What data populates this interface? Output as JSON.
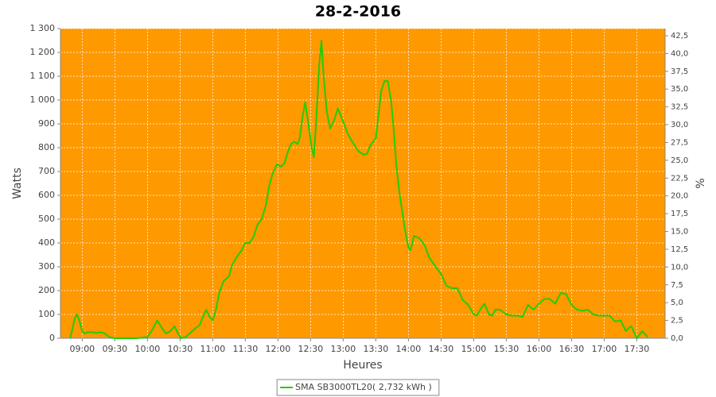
{
  "chart_data": {
    "type": "line",
    "title": "28-2-2016",
    "xlabel": "Heures",
    "ylabel": "Watts",
    "y2label": "%",
    "x": [
      "08:49",
      "08:53",
      "08:55",
      "08:57",
      "09:00",
      "09:02",
      "09:05",
      "09:10",
      "09:13",
      "09:16",
      "09:20",
      "09:25",
      "09:30",
      "09:40",
      "09:50",
      "10:00",
      "10:05",
      "10:09",
      "10:13",
      "10:17",
      "10:21",
      "10:25",
      "10:28",
      "10:31",
      "10:35",
      "10:40",
      "10:45",
      "10:48",
      "10:51",
      "10:54",
      "10:57",
      "11:00",
      "11:03",
      "11:06",
      "11:10",
      "11:15",
      "11:18",
      "11:22",
      "11:26",
      "11:30",
      "11:34",
      "11:38",
      "11:41",
      "11:45",
      "11:49",
      "11:52",
      "11:55",
      "11:59",
      "12:03",
      "12:06",
      "12:09",
      "12:12",
      "12:15",
      "12:18",
      "12:20",
      "12:23",
      "12:25",
      "12:28",
      "12:31",
      "12:33",
      "12:35",
      "12:38",
      "12:40",
      "12:42",
      "12:45",
      "12:48",
      "12:52",
      "12:55",
      "13:00",
      "13:04",
      "13:09",
      "13:14",
      "13:19",
      "13:22",
      "13:25",
      "13:30",
      "13:33",
      "13:35",
      "13:38",
      "13:41",
      "13:44",
      "13:46",
      "13:49",
      "13:52",
      "13:57",
      "14:00",
      "14:02",
      "14:05",
      "14:10",
      "14:15",
      "14:19",
      "14:25",
      "14:30",
      "14:35",
      "14:40",
      "14:45",
      "14:50",
      "14:55",
      "15:00",
      "15:03",
      "15:06",
      "15:10",
      "15:14",
      "15:17",
      "15:20",
      "15:24",
      "15:30",
      "15:35",
      "15:40",
      "15:45",
      "15:50",
      "15:55",
      "16:00",
      "16:05",
      "16:10",
      "16:15",
      "16:20",
      "16:25",
      "16:30",
      "16:35",
      "16:40",
      "16:45",
      "16:50",
      "16:55",
      "17:00",
      "17:05",
      "17:10",
      "17:15",
      "17:20",
      "17:23",
      "17:25",
      "17:30",
      "17:35",
      "17:40"
    ],
    "series": [
      {
        "name": "SMA SB3000TL20( 2,732 kWh )",
        "color": "#22cc00",
        "values": [
          0,
          80,
          100,
          80,
          30,
          20,
          25,
          25,
          22,
          25,
          22,
          5,
          0,
          0,
          0,
          5,
          40,
          75,
          45,
          20,
          30,
          50,
          20,
          0,
          5,
          25,
          45,
          55,
          90,
          120,
          90,
          75,
          120,
          190,
          240,
          260,
          310,
          340,
          365,
          400,
          400,
          430,
          475,
          500,
          560,
          640,
          690,
          730,
          720,
          735,
          780,
          815,
          825,
          815,
          840,
          940,
          990,
          900,
          800,
          760,
          900,
          1150,
          1250,
          1100,
          950,
          880,
          920,
          965,
          910,
          860,
          820,
          785,
          770,
          775,
          810,
          840,
          960,
          1040,
          1080,
          1080,
          1000,
          900,
          720,
          600,
          450,
          380,
          370,
          430,
          420,
          390,
          340,
          300,
          270,
          220,
          210,
          210,
          160,
          140,
          100,
          95,
          120,
          145,
          100,
          95,
          120,
          120,
          100,
          95,
          95,
          90,
          140,
          120,
          145,
          165,
          165,
          145,
          190,
          185,
          140,
          120,
          115,
          120,
          100,
          95,
          95,
          95,
          70,
          75,
          30,
          45,
          50,
          0,
          30,
          5
        ]
      }
    ],
    "xlim": [
      "08:40",
      "17:56"
    ],
    "xticks": [
      "09:00",
      "09:30",
      "10:00",
      "10:30",
      "11:00",
      "11:30",
      "12:00",
      "12:30",
      "13:00",
      "13:30",
      "14:00",
      "14:30",
      "15:00",
      "15:30",
      "16:00",
      "16:30",
      "17:00",
      "17:30"
    ],
    "ylim": [
      0,
      1300
    ],
    "yticks": [
      0,
      100,
      200,
      300,
      400,
      500,
      600,
      700,
      800,
      900,
      {
        "value": 1000,
        "label": "1 000"
      },
      {
        "value": 1100,
        "label": "1 100"
      },
      {
        "value": 1200,
        "label": "1 200"
      },
      {
        "value": 1300,
        "label": "1 300"
      }
    ],
    "y2lim": [
      0,
      43.5
    ],
    "y2ticks": [
      {
        "value": 0,
        "label": "0,0"
      },
      {
        "value": 2.5,
        "label": "2,5"
      },
      {
        "value": 5,
        "label": "5,0"
      },
      {
        "value": 7.5,
        "label": "7,5"
      },
      {
        "value": 10,
        "label": "10,0"
      },
      {
        "value": 12.5,
        "label": "12,5"
      },
      {
        "value": 15,
        "label": "15,0"
      },
      {
        "value": 17.5,
        "label": "17,5"
      },
      {
        "value": 20,
        "label": "20,0"
      },
      {
        "value": 22.5,
        "label": "22,5"
      },
      {
        "value": 25,
        "label": "25,0"
      },
      {
        "value": 27.5,
        "label": "27,5"
      },
      {
        "value": 30,
        "label": "30,0"
      },
      {
        "value": 32.5,
        "label": "32,5"
      },
      {
        "value": 35,
        "label": "35,0"
      },
      {
        "value": 37.5,
        "label": "37,5"
      },
      {
        "value": 40,
        "label": "40,0"
      },
      {
        "value": 42.5,
        "label": "42,5"
      }
    ],
    "grid": true,
    "background": "#ff9900",
    "legend": "bottom"
  }
}
